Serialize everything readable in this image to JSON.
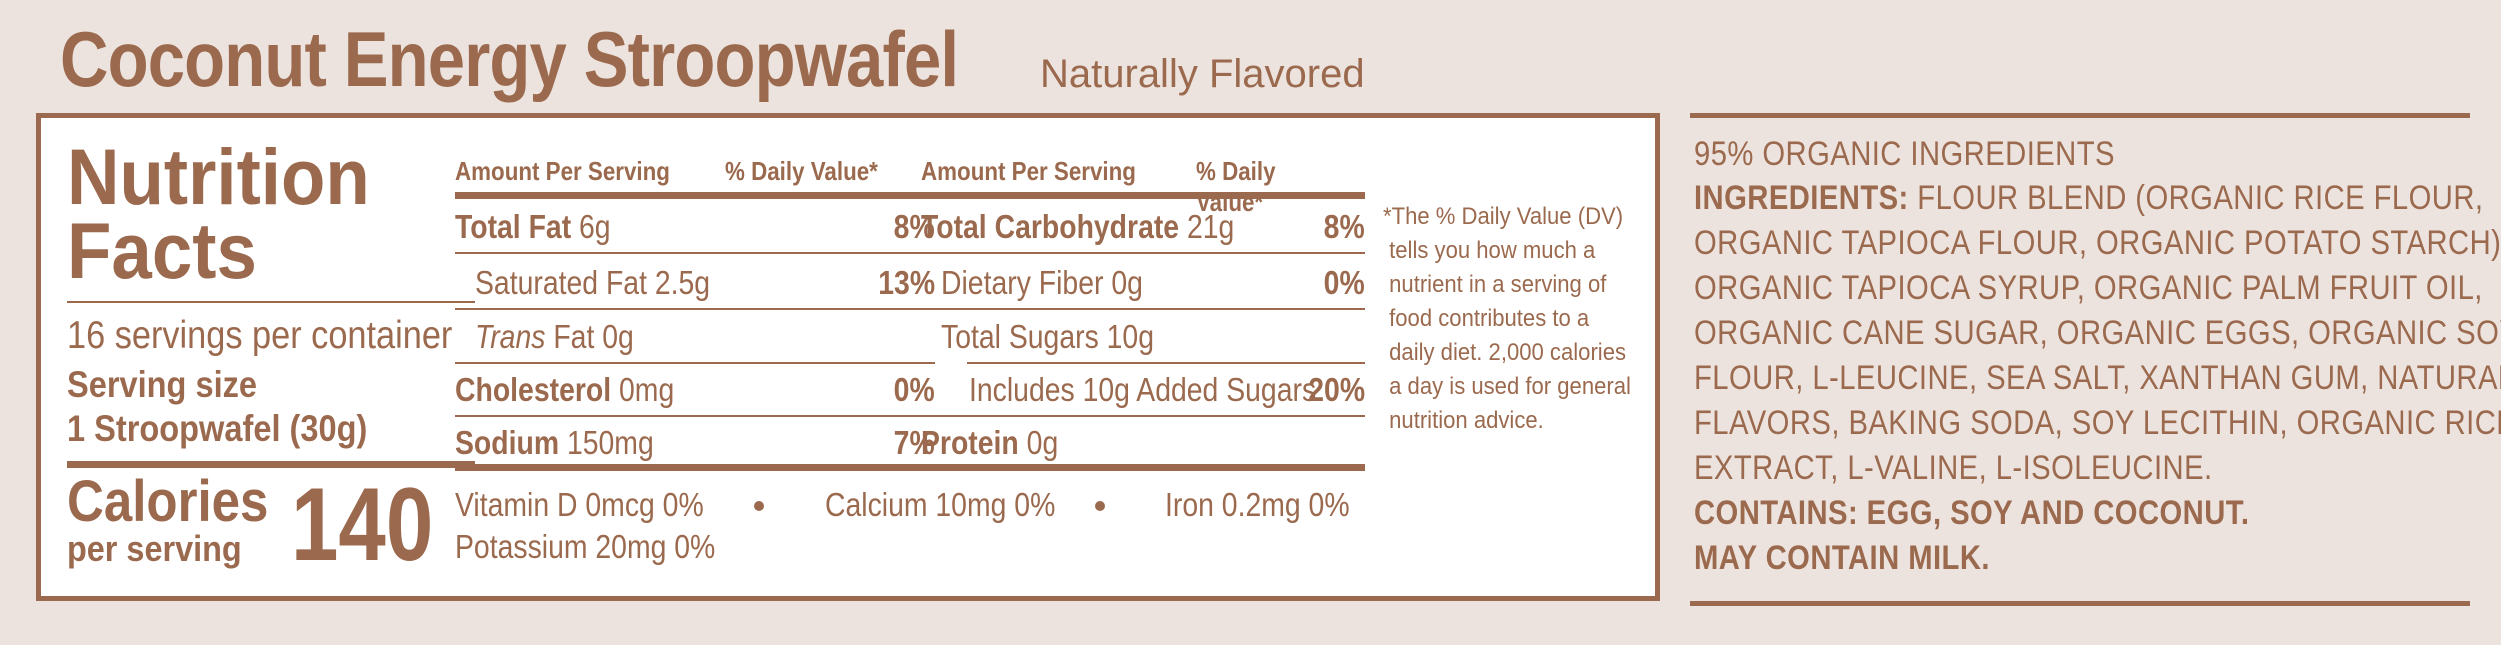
{
  "header": {
    "product_name": "Coconut Energy Stroopwafel",
    "flavor_note": "Naturally Flavored"
  },
  "nutrition": {
    "title_line1": "Nutrition",
    "title_line2": "Facts",
    "servings_per_container": "16 servings per container",
    "serving_size_label": "Serving size",
    "serving_size_value": "1 Stroopwafel (30g)",
    "calories_label": "Calories",
    "per_serving": "per serving",
    "calories_value": "140",
    "left_table": {
      "header_amount": "Amount Per Serving",
      "header_dv": "% Daily Value*",
      "rows": [
        {
          "name": "Total Fat",
          "amount": "6g",
          "dv": "8%"
        },
        {
          "name": "Saturated Fat",
          "amount": "2.5g",
          "dv": "13%"
        },
        {
          "name": "Trans",
          "amount": "Fat  0g",
          "dv": ""
        },
        {
          "name": "Cholesterol",
          "amount": "0mg",
          "dv": "0%"
        },
        {
          "name": "Sodium",
          "amount": "150mg",
          "dv": "7%"
        }
      ]
    },
    "right_table": {
      "header_amount": "Amount Per Serving",
      "header_dv": "% Daily Value*",
      "rows": [
        {
          "name": "Total Carbohydrate",
          "amount": "21g",
          "dv": "8%"
        },
        {
          "name": "Dietary Fiber",
          "amount": "0g",
          "dv": "0%"
        },
        {
          "name": "Total Sugars",
          "amount": "10g",
          "dv": ""
        },
        {
          "name": "Includes 10g Added Sugars",
          "amount": "",
          "dv": "20%"
        },
        {
          "name": "Protein",
          "amount": "0g",
          "dv": ""
        }
      ]
    },
    "footnote": "*The % Daily Value (DV)\n tells you how much a\n nutrient in a serving of\n food contributes to a\n daily diet. 2,000 calories\n a day is used for general\n nutrition advice.",
    "vitamins": [
      {
        "name": "Vitamin D",
        "value": "0mcg 0%"
      },
      {
        "name": "Calcium",
        "value": "10mg 0%"
      },
      {
        "name": "Iron",
        "value": "0.2mg 0%"
      },
      {
        "name": "Potassium",
        "value": "20mg 0%"
      }
    ]
  },
  "ingredients": {
    "organic_claim": "95% ORGANIC INGREDIENTS",
    "label": "INGREDIENTS:",
    "line1": "FLOUR BLEND (ORGANIC RICE FLOUR,",
    "line2": "ORGANIC TAPIOCA FLOUR, ORGANIC POTATO STARCH),",
    "line3": "ORGANIC TAPIOCA SYRUP, ORGANIC PALM FRUIT OIL,",
    "line4": "ORGANIC CANE SUGAR, ORGANIC EGGS, ORGANIC SOY",
    "line5": "FLOUR, L-LEUCINE, SEA SALT, XANTHAN GUM, NATURAL",
    "line6": "FLAVORS, BAKING SODA, SOY LECITHIN, ORGANIC RICE",
    "line7": "EXTRACT, L-VALINE, L-ISOLEUCINE.",
    "contains": "CONTAINS: EGG, SOY AND COCONUT.",
    "may_contain": "MAY CONTAIN MILK."
  },
  "colors": {
    "text": "#9b6a4e",
    "background": "#ece3de",
    "panel": "#ffffff"
  }
}
